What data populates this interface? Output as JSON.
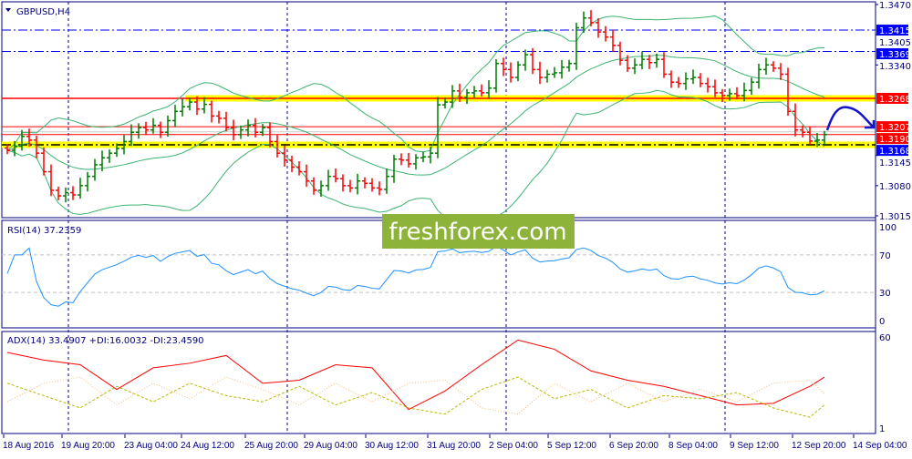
{
  "chart_data": [
    {
      "type": "ohlc",
      "title": "GBPUSD,H4",
      "ylim": [
        1.3015,
        1.347
      ],
      "y_ticks": [
        1.347,
        1.3405,
        1.334,
        1.3145,
        1.308,
        1.3015
      ],
      "x_tick_labels": [
        "18 Aug 2016",
        "19 Aug 20:00",
        "23 Aug 04:00",
        "24 Aug 12:00",
        "25 Aug 20:00",
        "29 Aug 04:00",
        "30 Aug 12:00",
        "31 Aug 20:00",
        "2 Sep 04:00",
        "5 Sep 12:00",
        "6 Sep 20:00",
        "8 Sep 04:00",
        "9 Sep 12:00",
        "12 Sep 20:00",
        "14 Sep 04:00"
      ],
      "close": [
        1.3156,
        1.3165,
        1.3186,
        1.3178,
        1.315,
        1.311,
        1.307,
        1.3058,
        1.3065,
        1.306,
        1.308,
        1.31,
        1.3125,
        1.314,
        1.315,
        1.316,
        1.3175,
        1.3195,
        1.3205,
        1.32,
        1.321,
        1.3195,
        1.322,
        1.324,
        1.325,
        1.326,
        1.3245,
        1.3255,
        1.323,
        1.3225,
        1.3205,
        1.319,
        1.32,
        1.321,
        1.3195,
        1.3205,
        1.3175,
        1.315,
        1.3135,
        1.312,
        1.311,
        1.309,
        1.307,
        1.308,
        1.31,
        1.3095,
        1.308,
        1.3075,
        1.309,
        1.3085,
        1.3075,
        1.3072,
        1.31,
        1.3137,
        1.3135,
        1.3127,
        1.314,
        1.3142,
        1.315,
        1.3254,
        1.326,
        1.3284,
        1.327,
        1.328,
        1.3284,
        1.328,
        1.329,
        1.3343,
        1.333,
        1.3313,
        1.334,
        1.3362,
        1.333,
        1.3313,
        1.332,
        1.3323,
        1.3335,
        1.3343,
        1.342,
        1.3441,
        1.3431,
        1.3411,
        1.34,
        1.3382,
        1.335,
        1.3333,
        1.334,
        1.3352,
        1.3345,
        1.3352,
        1.332,
        1.3303,
        1.33,
        1.331,
        1.3313,
        1.33,
        1.3293,
        1.328,
        1.3274,
        1.3278,
        1.3274,
        1.3285,
        1.3303,
        1.333,
        1.334,
        1.3333,
        1.332,
        1.324,
        1.32,
        1.3195,
        1.3176,
        1.3178,
        1.319
      ],
      "indicators": [
        "Bollinger Bands"
      ],
      "levels": [
        {
          "price": "1.3415",
          "style": "dash-dot",
          "color": "#0000ff"
        },
        {
          "price": "1.3369",
          "style": "dash-dot",
          "color": "#0000ff"
        },
        {
          "price": "1.3268",
          "style": "solid-yellow-band",
          "color": "#ff0000"
        },
        {
          "price": "1.3207",
          "style": "solid",
          "color": "#ff0000"
        },
        {
          "price": "1.3190",
          "style": "solid",
          "color": "#ff0000"
        },
        {
          "price": "1.3168",
          "style": "dash-dot-yellow-band",
          "color": "#0000ff"
        }
      ],
      "colors": {
        "bull": "#007a00",
        "bear": "#ff0000",
        "bands": "#3cb371",
        "grid": "#000080"
      }
    },
    {
      "type": "line",
      "title": "RSI(14) 37.2359",
      "ylim": [
        0,
        100
      ],
      "y_ticks": [
        100,
        70,
        30,
        0
      ],
      "levels": [
        70,
        30
      ],
      "colors": {
        "line": "#1e90ff"
      }
    },
    {
      "type": "line",
      "title": "ADX(14) 33.4907 +DI:16.0032 -DI:23.4590",
      "ylim": [
        1,
        60
      ],
      "y_ticks": [
        60,
        1
      ],
      "sample_every_bars": 5,
      "series": [
        {
          "name": "ADX(14)",
          "values": [
            50,
            45,
            42,
            26,
            40,
            43,
            48,
            30,
            32,
            42,
            40,
            13,
            25,
            42,
            58,
            52,
            38,
            32,
            28,
            22,
            16,
            17,
            28,
            34
          ],
          "color": "#ff0000"
        },
        {
          "name": "+DI",
          "values": [
            30,
            22,
            14,
            28,
            18,
            30,
            22,
            18,
            28,
            16,
            24,
            14,
            10,
            26,
            34,
            20,
            26,
            14,
            22,
            20,
            24,
            14,
            8,
            16
          ],
          "color": "#b8b800"
        },
        {
          "name": "-DI",
          "values": [
            18,
            30,
            34,
            16,
            30,
            20,
            34,
            26,
            16,
            30,
            18,
            30,
            32,
            14,
            10,
            30,
            18,
            30,
            18,
            26,
            18,
            30,
            32,
            23
          ],
          "color": "#f0c080"
        }
      ]
    }
  ],
  "watermark": "freshforex.com",
  "watermark_color": "#8db33a"
}
